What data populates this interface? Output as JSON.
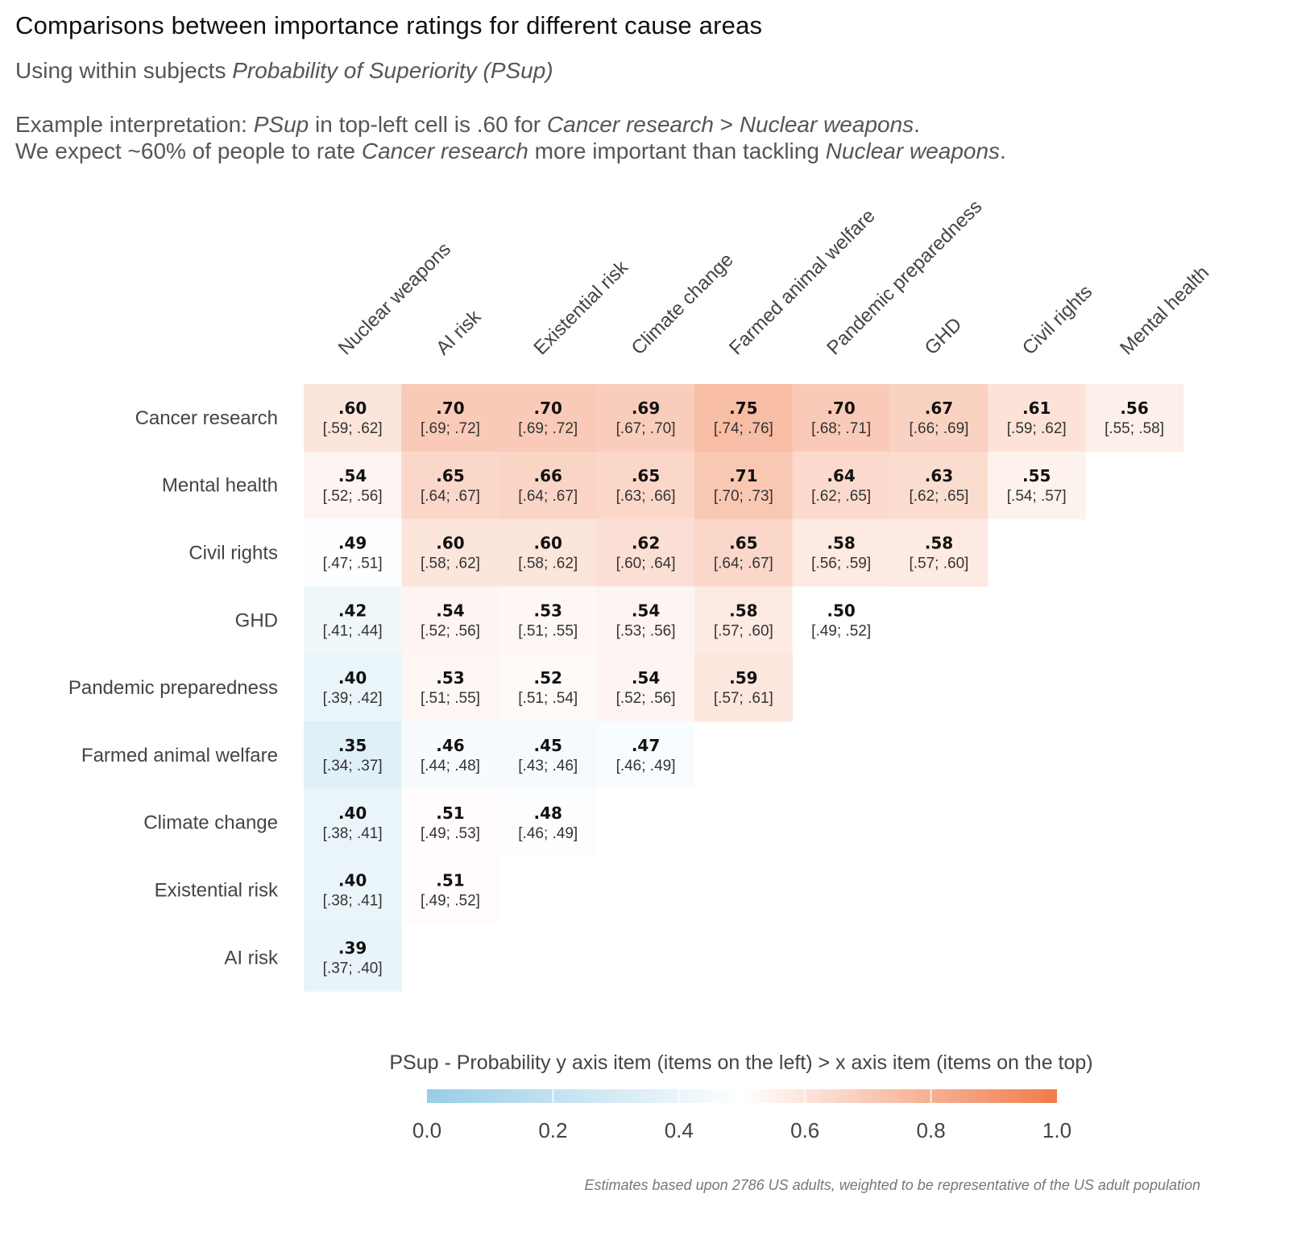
{
  "header": {
    "title": "Comparisons between importance ratings for different cause areas",
    "subtitle_plain": "Using within subjects ",
    "subtitle_italic": "Probability of Superiority (PSup)",
    "interp_line1": [
      {
        "t": "Example interpretation: ",
        "i": false
      },
      {
        "t": "PSup",
        "i": true
      },
      {
        "t": " in top-left cell is .60 for ",
        "i": false
      },
      {
        "t": "Cancer research",
        "i": true
      },
      {
        "t": " > ",
        "i": false
      },
      {
        "t": "Nuclear weapons",
        "i": true
      },
      {
        "t": ".",
        "i": false
      }
    ],
    "interp_line2": [
      {
        "t": "We expect ~60% of people to rate ",
        "i": false
      },
      {
        "t": "Cancer research",
        "i": true
      },
      {
        "t": " more important than tackling ",
        "i": false
      },
      {
        "t": "Nuclear weapons",
        "i": true
      },
      {
        "t": ".",
        "i": false
      }
    ]
  },
  "caption": "Estimates based upon 2786 US adults, weighted to be representative of the US adult population",
  "colors": {
    "low": "#98cde6",
    "mid": "#ffffff",
    "high": "#f07b4b"
  },
  "chart_data": {
    "type": "heatmap",
    "title": "Comparisons between importance ratings for different cause areas",
    "subtitle": "Using within subjects Probability of Superiority (PSup)",
    "x_categories": [
      "Nuclear weapons",
      "AI risk",
      "Existential risk",
      "Climate change",
      "Farmed animal welfare",
      "Pandemic preparedness",
      "GHD",
      "Civil rights",
      "Mental health"
    ],
    "y_categories": [
      "Cancer research",
      "Mental health",
      "Civil rights",
      "GHD",
      "Pandemic preparedness",
      "Farmed animal welfare",
      "Climate change",
      "Existential risk",
      "AI risk"
    ],
    "x_axis_position": "top",
    "cells": [
      [
        {
          "v": ".60",
          "ci": "[.59; .62]",
          "value": 0.6
        },
        {
          "v": ".70",
          "ci": "[.69; .72]",
          "value": 0.7
        },
        {
          "v": ".70",
          "ci": "[.69; .72]",
          "value": 0.7
        },
        {
          "v": ".69",
          "ci": "[.67; .70]",
          "value": 0.69
        },
        {
          "v": ".75",
          "ci": "[.74; .76]",
          "value": 0.75
        },
        {
          "v": ".70",
          "ci": "[.68; .71]",
          "value": 0.7
        },
        {
          "v": ".67",
          "ci": "[.66; .69]",
          "value": 0.67
        },
        {
          "v": ".61",
          "ci": "[.59; .62]",
          "value": 0.61
        },
        {
          "v": ".56",
          "ci": "[.55; .58]",
          "value": 0.56
        }
      ],
      [
        {
          "v": ".54",
          "ci": "[.52; .56]",
          "value": 0.54
        },
        {
          "v": ".65",
          "ci": "[.64; .67]",
          "value": 0.65
        },
        {
          "v": ".66",
          "ci": "[.64; .67]",
          "value": 0.66
        },
        {
          "v": ".65",
          "ci": "[.63; .66]",
          "value": 0.65
        },
        {
          "v": ".71",
          "ci": "[.70; .73]",
          "value": 0.71
        },
        {
          "v": ".64",
          "ci": "[.62; .65]",
          "value": 0.64
        },
        {
          "v": ".63",
          "ci": "[.62; .65]",
          "value": 0.63
        },
        {
          "v": ".55",
          "ci": "[.54; .57]",
          "value": 0.55
        }
      ],
      [
        {
          "v": ".49",
          "ci": "[.47; .51]",
          "value": 0.49
        },
        {
          "v": ".60",
          "ci": "[.58; .62]",
          "value": 0.6
        },
        {
          "v": ".60",
          "ci": "[.58; .62]",
          "value": 0.6
        },
        {
          "v": ".62",
          "ci": "[.60; .64]",
          "value": 0.62
        },
        {
          "v": ".65",
          "ci": "[.64; .67]",
          "value": 0.65
        },
        {
          "v": ".58",
          "ci": "[.56; .59]",
          "value": 0.58
        },
        {
          "v": ".58",
          "ci": "[.57; .60]",
          "value": 0.58
        }
      ],
      [
        {
          "v": ".42",
          "ci": "[.41; .44]",
          "value": 0.42
        },
        {
          "v": ".54",
          "ci": "[.52; .56]",
          "value": 0.54
        },
        {
          "v": ".53",
          "ci": "[.51; .55]",
          "value": 0.53
        },
        {
          "v": ".54",
          "ci": "[.53; .56]",
          "value": 0.54
        },
        {
          "v": ".58",
          "ci": "[.57; .60]",
          "value": 0.58
        },
        {
          "v": ".50",
          "ci": "[.49; .52]",
          "value": 0.5
        }
      ],
      [
        {
          "v": ".40",
          "ci": "[.39; .42]",
          "value": 0.4
        },
        {
          "v": ".53",
          "ci": "[.51; .55]",
          "value": 0.53
        },
        {
          "v": ".52",
          "ci": "[.51; .54]",
          "value": 0.52
        },
        {
          "v": ".54",
          "ci": "[.52; .56]",
          "value": 0.54
        },
        {
          "v": ".59",
          "ci": "[.57; .61]",
          "value": 0.59
        }
      ],
      [
        {
          "v": ".35",
          "ci": "[.34; .37]",
          "value": 0.35
        },
        {
          "v": ".46",
          "ci": "[.44; .48]",
          "value": 0.46
        },
        {
          "v": ".45",
          "ci": "[.43; .46]",
          "value": 0.45
        },
        {
          "v": ".47",
          "ci": "[.46; .49]",
          "value": 0.47
        }
      ],
      [
        {
          "v": ".40",
          "ci": "[.38; .41]",
          "value": 0.4
        },
        {
          "v": ".51",
          "ci": "[.49; .53]",
          "value": 0.51
        },
        {
          "v": ".48",
          "ci": "[.46; .49]",
          "value": 0.48
        }
      ],
      [
        {
          "v": ".40",
          "ci": "[.38; .41]",
          "value": 0.4
        },
        {
          "v": ".51",
          "ci": "[.49; .52]",
          "value": 0.51
        }
      ],
      [
        {
          "v": ".39",
          "ci": "[.37; .40]",
          "value": 0.39
        }
      ]
    ],
    "legend": {
      "title": "PSup - Probability y axis item (items on the left) > x axis item (items on the top)",
      "range": [
        0,
        1
      ],
      "ticks": [
        "0.0",
        "0.2",
        "0.4",
        "0.6",
        "0.8",
        "1.0"
      ],
      "tick_values": [
        0,
        0.2,
        0.4,
        0.6,
        0.8,
        1.0
      ],
      "placement": "bottom"
    },
    "grid": false
  }
}
